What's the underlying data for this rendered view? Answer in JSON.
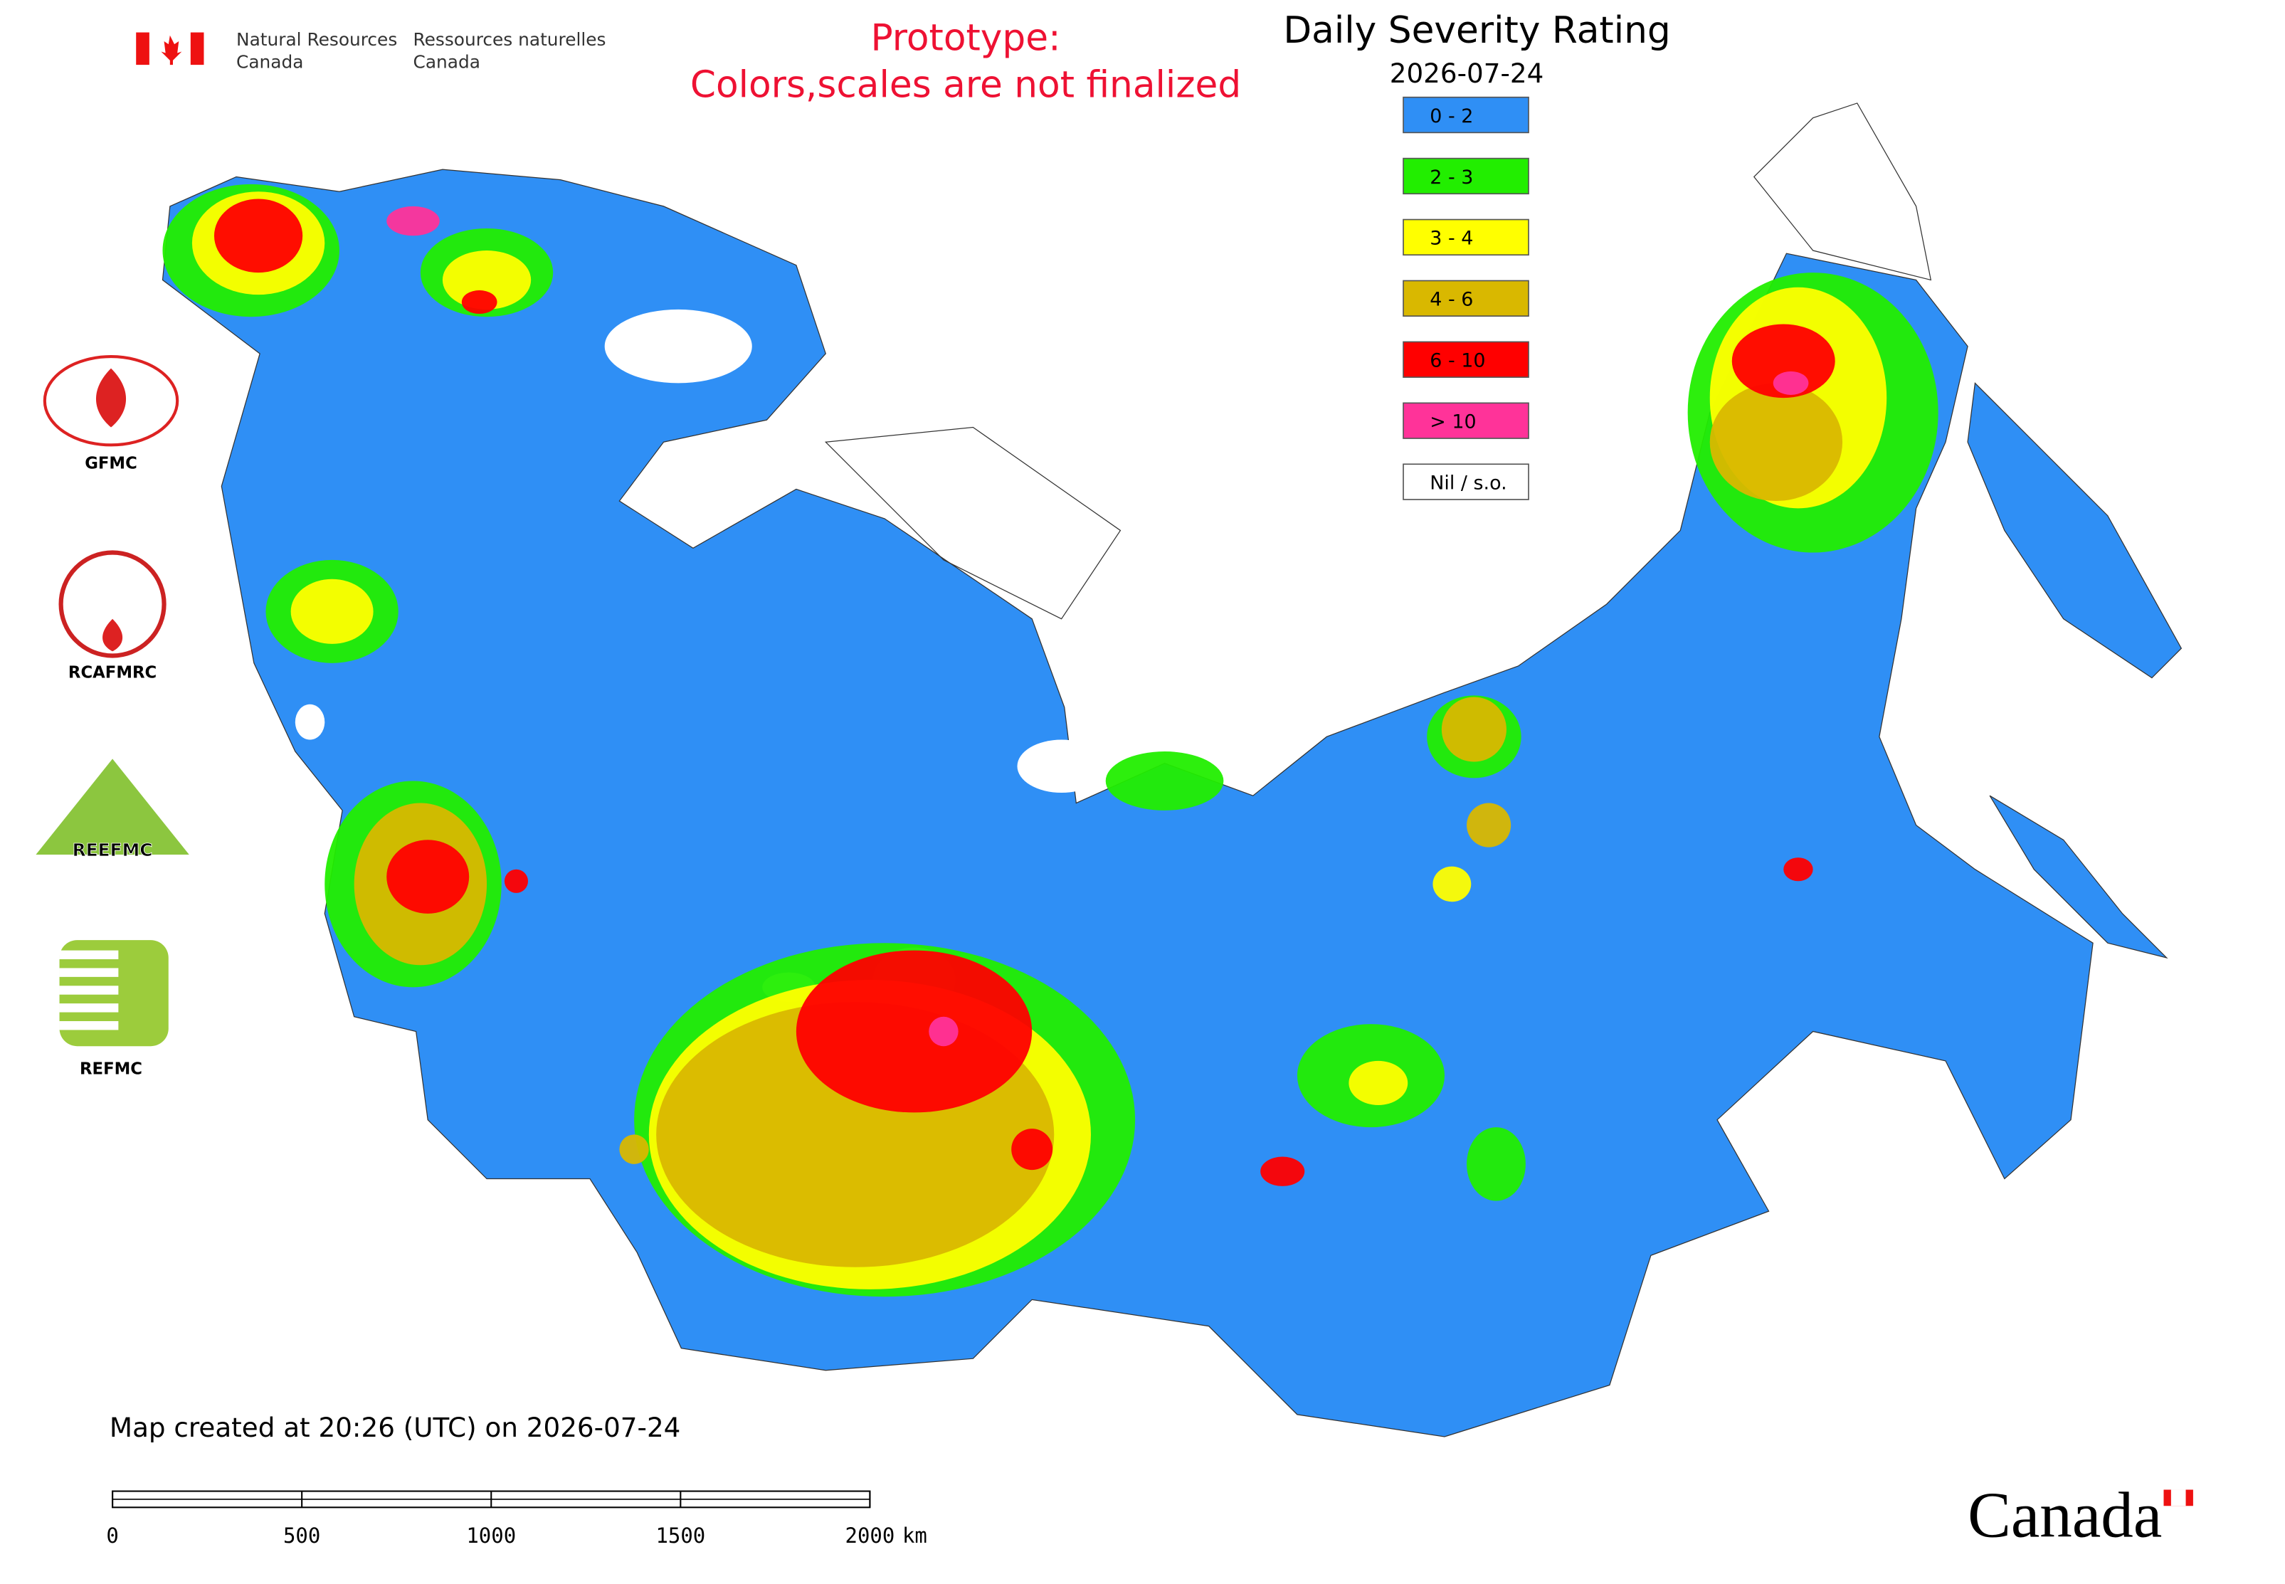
{
  "header": {
    "agency_en": [
      "Natural Resources",
      "Canada"
    ],
    "agency_fr": [
      "Ressources naturelles",
      "Canada"
    ]
  },
  "notice": [
    "Prototype:",
    "Colors,scales are not finalized"
  ],
  "title": "Daily Severity Rating",
  "date": "2026-07-24",
  "legend": [
    {
      "label": "0 - 2",
      "color": "#2f8ff5"
    },
    {
      "label": "2 - 3",
      "color": "#22ee00"
    },
    {
      "label": "3 - 4",
      "color": "#ffff00"
    },
    {
      "label": "4 - 6",
      "color": "#d9b800"
    },
    {
      "label": "6 - 10",
      "color": "#ff0000"
    },
    {
      "label": "> 10",
      "color": "#ff3399"
    },
    {
      "label": "Nil / s.o.",
      "color": "#ffffff"
    }
  ],
  "logos": [
    "GFMC",
    "RCAFMRC",
    "REEFMC",
    "REFMC"
  ],
  "footer": {
    "created": "Map created at 20:26 (UTC) on 2026-07-24",
    "scale": {
      "ticks": [
        0,
        500,
        1000,
        1500,
        2000
      ],
      "unit": "km"
    }
  },
  "wordmark": "Canada"
}
